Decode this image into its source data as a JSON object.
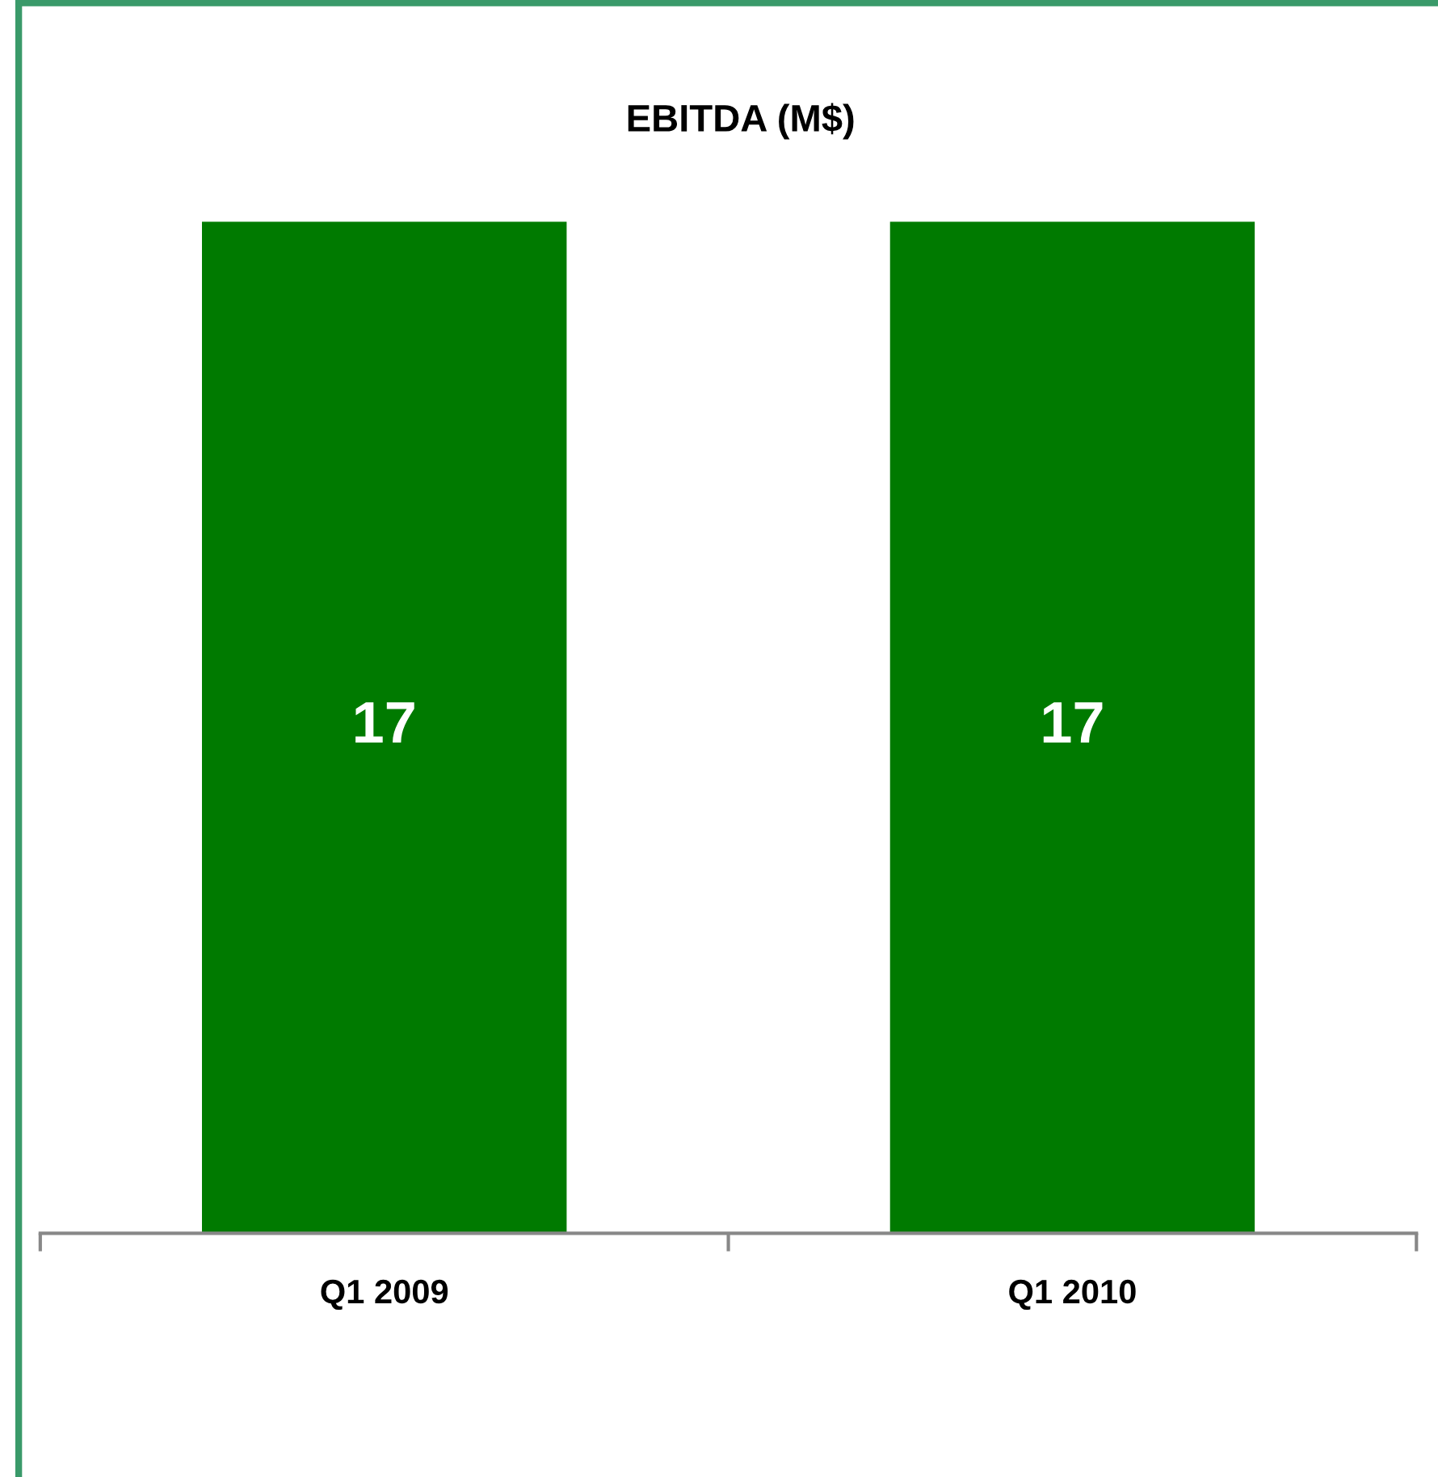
{
  "chart_data": {
    "type": "bar",
    "title": "EBITDA (M$)",
    "categories": [
      "Q1 2009",
      "Q1 2010"
    ],
    "values": [
      17,
      17
    ],
    "color": "#007a00",
    "data_labels": true
  }
}
